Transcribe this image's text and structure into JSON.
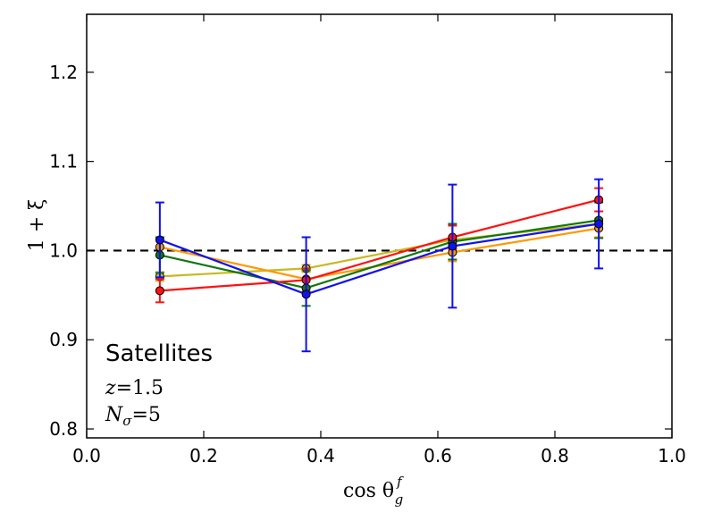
{
  "chart_data": {
    "type": "line",
    "xlabel": "cos θ",
    "xlabel_sup": "f",
    "xlabel_sub": "g",
    "ylabel": "1 + ξ",
    "xlim": [
      0.0,
      1.0
    ],
    "ylim": [
      0.79,
      1.265
    ],
    "xticks": [
      0.0,
      0.2,
      0.4,
      0.6,
      0.8,
      1.0
    ],
    "xtick_labels": [
      "0.0",
      "0.2",
      "0.4",
      "0.6",
      "0.8",
      "1.0"
    ],
    "yticks": [
      0.8,
      0.9,
      1.0,
      1.1,
      1.2
    ],
    "ytick_labels": [
      "0.8",
      "0.9",
      "1.0",
      "1.1",
      "1.2"
    ],
    "reference_line": {
      "y": 1.0,
      "style": "dashed",
      "color": "#000000"
    },
    "x": [
      0.125,
      0.375,
      0.625,
      0.875
    ],
    "series": [
      {
        "name": "yellow",
        "color": "#c8b820",
        "values": [
          0.971,
          0.98,
          1.012,
          1.03
        ],
        "errors": [
          0.005,
          0.004,
          0.004,
          0.006
        ]
      },
      {
        "name": "orange",
        "color": "#ff9900",
        "values": [
          1.004,
          0.968,
          0.998,
          1.025
        ],
        "errors": [
          0.01,
          0.01,
          0.01,
          0.01
        ]
      },
      {
        "name": "green",
        "color": "#117711",
        "values": [
          0.995,
          0.958,
          1.01,
          1.034
        ],
        "errors": [
          0.02,
          0.02,
          0.02,
          0.02
        ]
      },
      {
        "name": "red",
        "color": "#ff1111",
        "values": [
          0.955,
          0.967,
          1.015,
          1.057
        ],
        "errors": [
          0.013,
          0.013,
          0.013,
          0.013
        ]
      },
      {
        "name": "blue",
        "color": "#1111ee",
        "values": [
          1.012,
          0.951,
          1.005,
          1.03
        ],
        "errors": [
          0.042,
          0.064,
          0.069,
          0.05
        ]
      }
    ],
    "annotations": {
      "title": "Satellites",
      "redshift_var": "z",
      "redshift_eq": "=1.5",
      "nsigma_var": "N",
      "nsigma_sub": "σ",
      "nsigma_eq": "=5"
    }
  }
}
